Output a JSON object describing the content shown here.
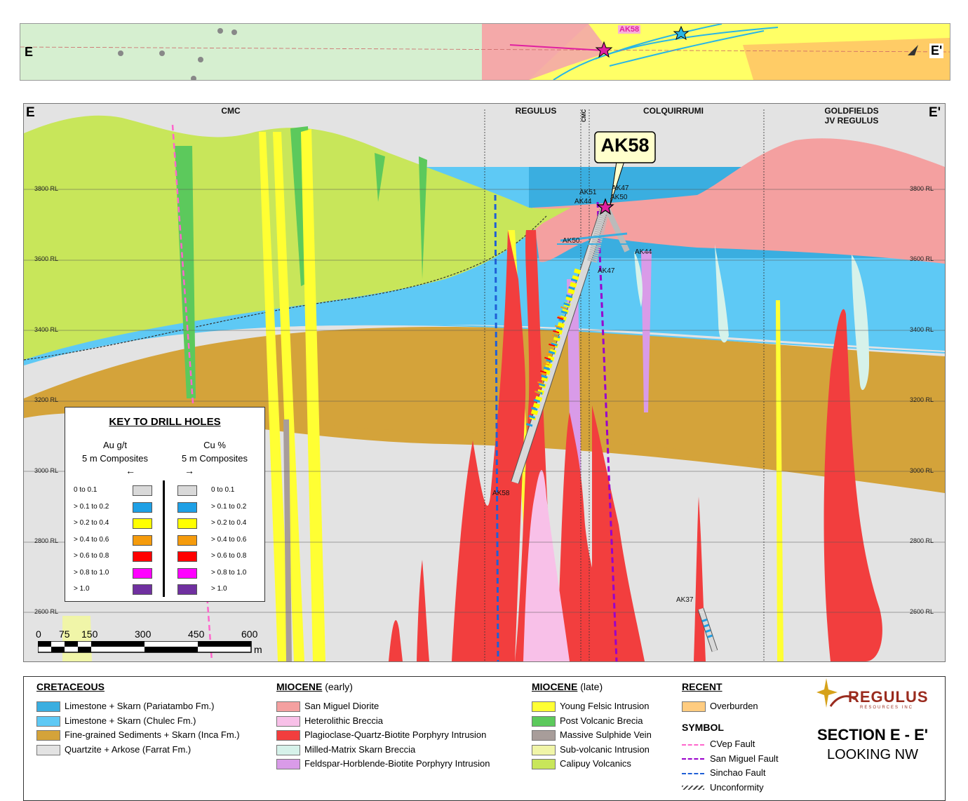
{
  "plan_map": {
    "left_label": "E",
    "right_label": "E'",
    "drill_label": "AK58"
  },
  "section": {
    "left_label": "E",
    "right_label": "E'",
    "zones": [
      {
        "name": "CMC"
      },
      {
        "name": "REGULUS"
      },
      {
        "name": "CMC"
      },
      {
        "name": "COLQUIRRUMI"
      },
      {
        "name": "GOLDFIELDS\nJV REGULUS"
      }
    ],
    "rl_labels": [
      "3800 RL",
      "3600 RL",
      "3400 RL",
      "3200 RL",
      "3000 RL",
      "2800 RL",
      "2600 RL"
    ],
    "callout": "AK58",
    "drill_labels": [
      "AK51",
      "AK47",
      "AK44",
      "AK50",
      "AK50",
      "AK44",
      "AK47",
      "AK58",
      "AK37"
    ],
    "scale": {
      "ticks": [
        "0",
        "75",
        "150",
        "300",
        "450",
        "600"
      ],
      "unit": "m"
    }
  },
  "key": {
    "title": "KEY TO DRILL HOLES",
    "au_header": "Au g/t\n5 m Composites",
    "cu_header": "Cu %\n5 m Composites",
    "arrow_left": "←",
    "arrow_right": "→",
    "rows": [
      {
        "label": "0 to 0.1",
        "color": "#d9d9d9"
      },
      {
        "label": "> 0.1 to 0.2",
        "color": "#1ea0e6"
      },
      {
        "label": "> 0.2 to 0.4",
        "color": "#ffff00"
      },
      {
        "label": "> 0.4 to 0.6",
        "color": "#f59b0c"
      },
      {
        "label": "> 0.6 to 0.8",
        "color": "#ff0000"
      },
      {
        "label": "> 0.8 to 1.0",
        "color": "#ff00ff"
      },
      {
        "label": "> 1.0",
        "color": "#7030a0"
      }
    ]
  },
  "legend": {
    "cretaceous": {
      "title": "CRETACEOUS",
      "items": [
        {
          "label": "Limestone + Skarn (Pariatambo Fm.)",
          "color": "#3aaee0"
        },
        {
          "label": "Limestone + Skarn (Chulec Fm.)",
          "color": "#5ec9f5"
        },
        {
          "label": "Fine-grained Sediments + Skarn (Inca Fm.)",
          "color": "#d4a33a"
        },
        {
          "label": "Quartzite + Arkose (Farrat Fm.)",
          "color": "#e3e3e3"
        }
      ]
    },
    "miocene_early": {
      "title": "MIOCENE",
      "suffix": " (early)",
      "items": [
        {
          "label": "San Miguel Diorite",
          "color": "#f4a0a0"
        },
        {
          "label": "Heterolithic Breccia",
          "color": "#f8c0e8"
        },
        {
          "label": "Plagioclase-Quartz-Biotite Porphyry Intrusion",
          "color": "#f23e3e"
        },
        {
          "label": "Milled-Matrix Skarn Breccia",
          "color": "#d6f2ea"
        },
        {
          "label": "Feldspar-Horblende-Biotite Porphyry Intrusion",
          "color": "#d99be8"
        }
      ]
    },
    "miocene_late": {
      "title": "MIOCENE",
      "suffix": " (late)",
      "items": [
        {
          "label": "Young Felsic Intrusion",
          "color": "#ffff33"
        },
        {
          "label": "Post Volcanic Brecia",
          "color": "#5cc95c"
        },
        {
          "label": "Massive Sulphide Vein",
          "color": "#a89d9a"
        },
        {
          "label": "Sub-volcanic Intrusion",
          "color": "#f0f5a8"
        },
        {
          "label": "Calipuy Volcanics",
          "color": "#c8e65a"
        }
      ]
    },
    "recent": {
      "title": "RECENT",
      "items": [
        {
          "label": "Overburden",
          "color": "#ffcc80"
        }
      ]
    },
    "symbol": {
      "title": "SYMBOL",
      "items": [
        {
          "label": "CVep Fault",
          "color": "#ff66cc",
          "style": "dashed"
        },
        {
          "label": "San Miguel Fault",
          "color": "#9900cc",
          "style": "dashed"
        },
        {
          "label": "Sinchao Fault",
          "color": "#1f5fd6",
          "style": "dashed"
        },
        {
          "label": "Unconformity",
          "color": "#444444",
          "style": "wavy"
        }
      ]
    },
    "logo": {
      "name": "REGULUS",
      "sub": "RESOURCES INC"
    },
    "section_title": "SECTION E - E'",
    "section_subtitle": "LOOKING NW"
  }
}
